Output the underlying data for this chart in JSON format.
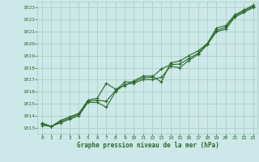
{
  "x": [
    0,
    1,
    2,
    3,
    4,
    5,
    6,
    7,
    8,
    9,
    10,
    11,
    12,
    13,
    14,
    15,
    16,
    17,
    18,
    19,
    20,
    21,
    22,
    23
  ],
  "line1": [
    1013.2,
    1013.1,
    1013.4,
    1013.7,
    1014.0,
    1015.1,
    1015.1,
    1014.7,
    1016.0,
    1016.6,
    1016.7,
    1017.0,
    1017.0,
    1017.2,
    1018.1,
    1018.0,
    1018.6,
    1019.1,
    1019.9,
    1021.0,
    1021.2,
    1022.2,
    1022.6,
    1023.0
  ],
  "line2": [
    1013.3,
    1013.1,
    1013.5,
    1013.8,
    1014.1,
    1015.2,
    1015.3,
    1015.2,
    1016.1,
    1016.8,
    1016.8,
    1017.15,
    1017.2,
    1017.9,
    1018.25,
    1018.3,
    1018.75,
    1019.2,
    1020.0,
    1021.1,
    1021.35,
    1022.3,
    1022.7,
    1023.1
  ],
  "line3": [
    1013.4,
    1013.1,
    1013.6,
    1013.9,
    1014.2,
    1015.3,
    1015.45,
    1016.7,
    1016.2,
    1016.5,
    1016.9,
    1017.3,
    1017.3,
    1016.8,
    1018.4,
    1018.55,
    1019.0,
    1019.4,
    1020.0,
    1021.3,
    1021.5,
    1022.4,
    1022.8,
    1023.2
  ],
  "line_color": "#2d6a2d",
  "bg_color": "#cce8e8",
  "grid_color": "#aaccbb",
  "tick_color": "#2d6a2d",
  "label_color": "#2d6a2d",
  "title": "Graphe pression niveau de la mer (hPa)",
  "ylim": [
    1012.5,
    1023.5
  ],
  "yticks": [
    1013,
    1014,
    1015,
    1016,
    1017,
    1018,
    1019,
    1020,
    1021,
    1022,
    1023
  ],
  "xticks": [
    0,
    1,
    2,
    3,
    4,
    5,
    6,
    7,
    8,
    9,
    10,
    11,
    12,
    13,
    14,
    15,
    16,
    17,
    18,
    19,
    20,
    21,
    22,
    23
  ],
  "marker": "+",
  "marker_size": 3.5,
  "linewidth": 0.8
}
